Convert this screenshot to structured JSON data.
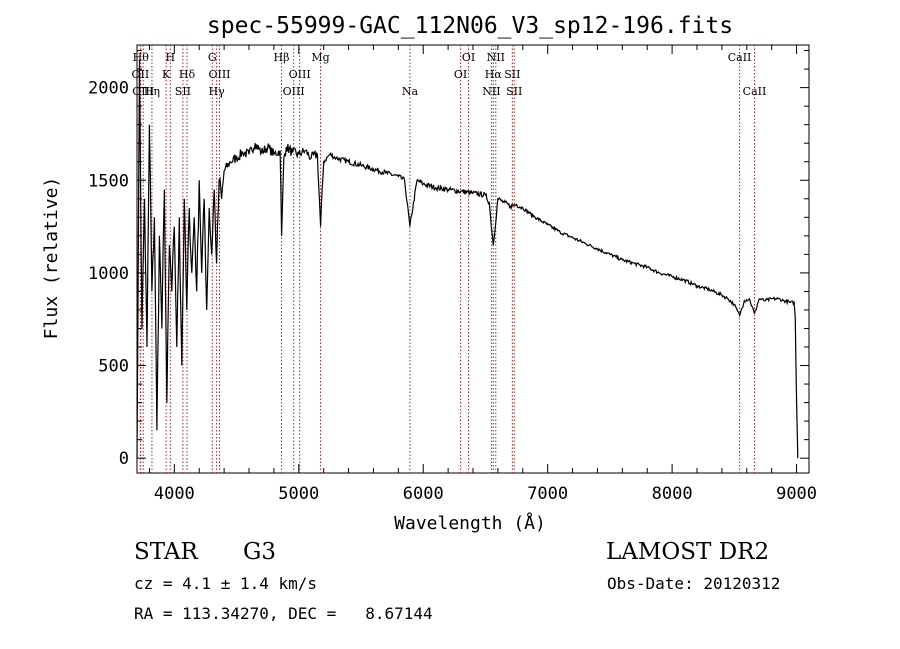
{
  "chart_data": {
    "type": "line",
    "title": "spec-55999-GAC_112N06_V3_sp12-196.fits",
    "xlabel": "Wavelength (Å)",
    "ylabel": "Flux (relative)",
    "xlim": [
      3700,
      9100
    ],
    "ylim": [
      -80,
      2230
    ],
    "xticks": [
      4000,
      5000,
      6000,
      7000,
      8000,
      9000
    ],
    "yticks": [
      0,
      500,
      1000,
      1500,
      2000
    ],
    "grid": false,
    "series": [
      {
        "x": [
          3700,
          3720,
          3740,
          3760,
          3780,
          3800,
          3820,
          3840,
          3860,
          3880,
          3900,
          3920,
          3940,
          3960,
          3980,
          4000,
          4020,
          4040,
          4060,
          4080,
          4100,
          4120,
          4140,
          4160,
          4180,
          4200,
          4220,
          4240,
          4260,
          4280,
          4300,
          4320,
          4340,
          4360,
          4380,
          4400,
          4450,
          4500,
          4550,
          4600,
          4650,
          4700,
          4750,
          4800,
          4850,
          4862,
          4880,
          4900,
          4950,
          5000,
          5050,
          5100,
          5150,
          5175,
          5200,
          5250,
          5300,
          5400,
          5500,
          5600,
          5700,
          5800,
          5850,
          5893,
          5950,
          6000,
          6100,
          6200,
          6300,
          6400,
          6500,
          6530,
          6563,
          6600,
          6650,
          6700,
          6750,
          6800,
          6900,
          7000,
          7100,
          7200,
          7300,
          7400,
          7500,
          7600,
          7700,
          7800,
          7900,
          8000,
          8100,
          8200,
          8300,
          8400,
          8450,
          8498,
          8542,
          8580,
          8620,
          8662,
          8700,
          8750,
          8800,
          8850,
          8900,
          8950,
          8980,
          8990,
          9000,
          9010
        ],
        "y": [
          0,
          2150,
          700,
          1400,
          600,
          1800,
          900,
          1300,
          150,
          1200,
          700,
          1450,
          300,
          1150,
          900,
          1250,
          600,
          1300,
          500,
          1400,
          800,
          1350,
          1000,
          1300,
          900,
          1500,
          1000,
          1400,
          800,
          1350,
          1100,
          1450,
          1050,
          1500,
          1400,
          1550,
          1600,
          1620,
          1650,
          1640,
          1700,
          1650,
          1680,
          1640,
          1660,
          1200,
          1620,
          1680,
          1650,
          1640,
          1660,
          1620,
          1640,
          1250,
          1600,
          1640,
          1620,
          1600,
          1580,
          1560,
          1540,
          1520,
          1500,
          1250,
          1500,
          1480,
          1460,
          1450,
          1440,
          1430,
          1420,
          1380,
          1150,
          1400,
          1380,
          1360,
          1370,
          1350,
          1300,
          1260,
          1220,
          1190,
          1160,
          1130,
          1100,
          1070,
          1050,
          1030,
          1000,
          980,
          960,
          930,
          910,
          880,
          860,
          830,
          770,
          850,
          860,
          780,
          860,
          850,
          860,
          860,
          850,
          840,
          840,
          750,
          300,
          0
        ]
      }
    ],
    "lines": [
      {
        "x": 3730,
        "label": "Hθ",
        "row": 0
      },
      {
        "x": 3727,
        "label": "OII",
        "row": 1
      },
      {
        "x": 3750,
        "label": "OIII",
        "row": 2
      },
      {
        "x": 3820,
        "label": "Hη",
        "row": 2
      },
      {
        "x": 3934,
        "label": "K",
        "row": 1
      },
      {
        "x": 3968,
        "label": "H",
        "row": 0
      },
      {
        "x": 4102,
        "label": "Hδ",
        "row": 1
      },
      {
        "x": 4069,
        "label": "SII",
        "row": 2
      },
      {
        "x": 4305,
        "label": "G",
        "row": 0
      },
      {
        "x": 4340,
        "label": "Hγ",
        "row": 2
      },
      {
        "x": 4363,
        "label": "OIII",
        "row": 1
      },
      {
        "x": 4861,
        "label": "Hβ",
        "row": 0
      },
      {
        "x": 4959,
        "label": "OIII",
        "row": 2
      },
      {
        "x": 5007,
        "label": "OIII",
        "row": 1
      },
      {
        "x": 5175,
        "label": "Mg",
        "row": 0
      },
      {
        "x": 5893,
        "label": "Na",
        "row": 2
      },
      {
        "x": 6300,
        "label": "OI",
        "row": 1
      },
      {
        "x": 6364,
        "label": "OI",
        "row": 0
      },
      {
        "x": 6548,
        "label": "NII",
        "row": 2
      },
      {
        "x": 6563,
        "label": "Hα",
        "row": 1
      },
      {
        "x": 6583,
        "label": "NII",
        "row": 0
      },
      {
        "x": 6716,
        "label": "SII",
        "row": 1
      },
      {
        "x": 6731,
        "label": "SII",
        "row": 2
      },
      {
        "x": 8542,
        "label": "CaII",
        "row": 0
      },
      {
        "x": 8662,
        "label": "CaII",
        "row": 2
      }
    ],
    "line_color": "#b22222",
    "spectrum_color": "#000000"
  },
  "info": {
    "object_class": "STAR",
    "subclass": "G3",
    "survey": "LAMOST DR2",
    "redshift": "cz = 4.1 ± 1.4 km/s",
    "obs_date": "Obs-Date: 20120312",
    "coords": "RA = 113.34270, DEC =   8.67144"
  }
}
